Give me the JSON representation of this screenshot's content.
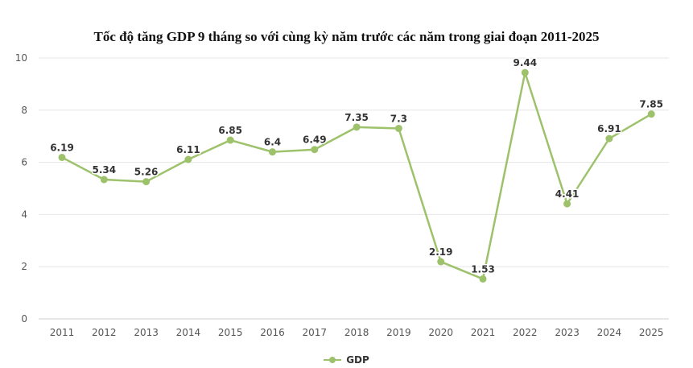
{
  "chart_data": {
    "type": "line",
    "title": "Tốc độ tăng GDP 9 tháng so với cùng kỳ năm trước các năm trong giai đoạn 2011-2025",
    "xlabel": "",
    "ylabel": "",
    "categories": [
      "2011",
      "2012",
      "2013",
      "2014",
      "2015",
      "2016",
      "2017",
      "2018",
      "2019",
      "2020",
      "2021",
      "2022",
      "2023",
      "2024",
      "2025"
    ],
    "series": [
      {
        "name": "GDP",
        "values": [
          6.19,
          5.34,
          5.26,
          6.11,
          6.85,
          6.4,
          6.49,
          7.35,
          7.3,
          2.19,
          1.53,
          9.44,
          4.41,
          6.91,
          7.85
        ],
        "labels": [
          "6.19",
          "5.34",
          "5.26",
          "6.11",
          "6.85",
          "6.4",
          "6.49",
          "7.35",
          "7.3",
          "2.19",
          "1.53",
          "9.44",
          "4.41",
          "6.91",
          "7.85"
        ]
      }
    ],
    "ylim": [
      0,
      10
    ],
    "yticks": [
      "0",
      "2",
      "4",
      "6",
      "8",
      "10"
    ],
    "grid": true,
    "legend_position": "bottom-center",
    "colors": {
      "line": "#9dc26b",
      "grid": "#e6e6e6",
      "axis": "#cfcfcf"
    }
  }
}
